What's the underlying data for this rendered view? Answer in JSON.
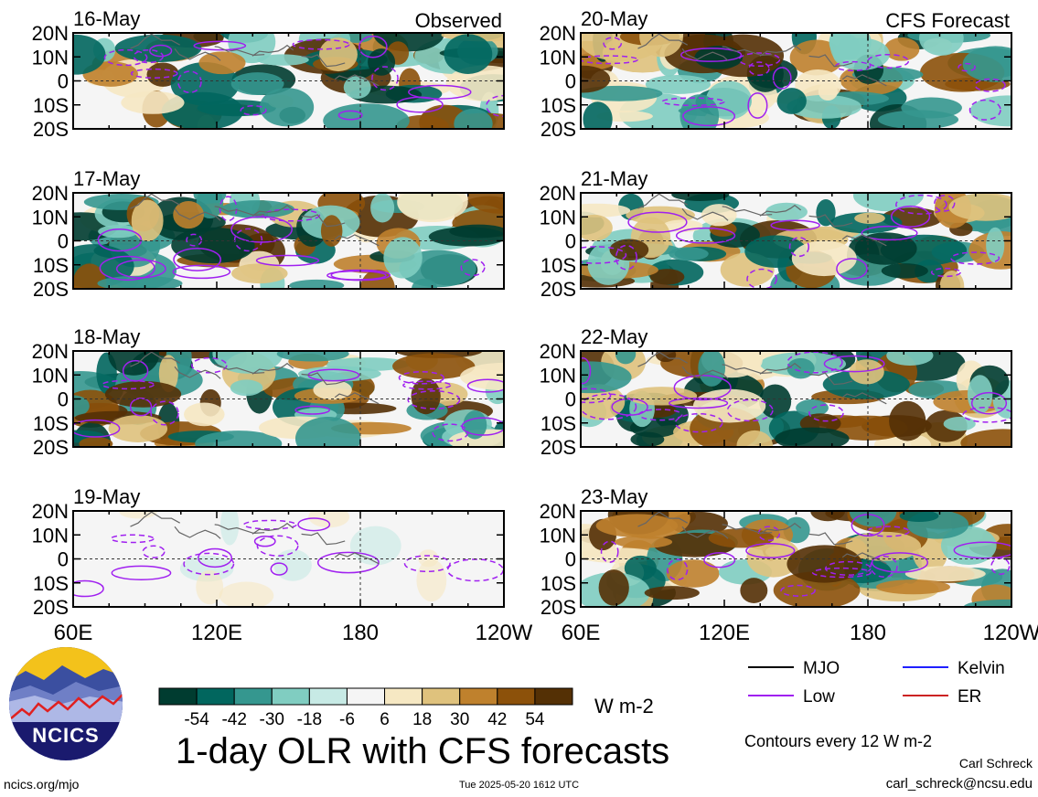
{
  "chart_data": {
    "type": "heatmap",
    "title": "1-day OLR with CFS forecasts",
    "units": "W m-2",
    "x_ticks": [
      "60E",
      "120E",
      "180",
      "120W"
    ],
    "y_ticks": [
      "20N",
      "10N",
      "0",
      "10S",
      "20S"
    ],
    "colorbar": {
      "labels": [
        "-54",
        "-42",
        "-30",
        "-18",
        "-6",
        "6",
        "18",
        "30",
        "42",
        "54"
      ],
      "colors": [
        "#003c30",
        "#01665e",
        "#35978f",
        "#80cdc1",
        "#c7eae5",
        "#f5f5f5",
        "#f6e8c3",
        "#dfc27d",
        "#bf812d",
        "#8c510a",
        "#543005"
      ]
    },
    "contour_interval_note": "Contours every 12 W m-2",
    "legend": [
      {
        "name": "MJO",
        "color": "#000000"
      },
      {
        "name": "Kelvin",
        "color": "#1f1fff"
      },
      {
        "name": "Low",
        "color": "#a020f0"
      },
      {
        "name": "ER",
        "color": "#cc2222"
      }
    ],
    "panels": [
      {
        "date": "16-May",
        "label": "Observed",
        "column": "observed"
      },
      {
        "date": "17-May",
        "label": "",
        "column": "observed"
      },
      {
        "date": "18-May",
        "label": "",
        "column": "observed"
      },
      {
        "date": "19-May",
        "label": "",
        "column": "observed"
      },
      {
        "date": "20-May",
        "label": "CFS Forecast",
        "column": "forecast"
      },
      {
        "date": "21-May",
        "label": "",
        "column": "forecast"
      },
      {
        "date": "22-May",
        "label": "",
        "column": "forecast"
      },
      {
        "date": "23-May",
        "label": "",
        "column": "forecast"
      }
    ]
  },
  "logo": {
    "text": "NCICS"
  },
  "footer": {
    "url": "ncics.org/mjo",
    "timestamp": "Tue 2025-05-20 1612 UTC",
    "author": "Carl Schreck",
    "email": "carl_schreck@ncsu.edu"
  }
}
